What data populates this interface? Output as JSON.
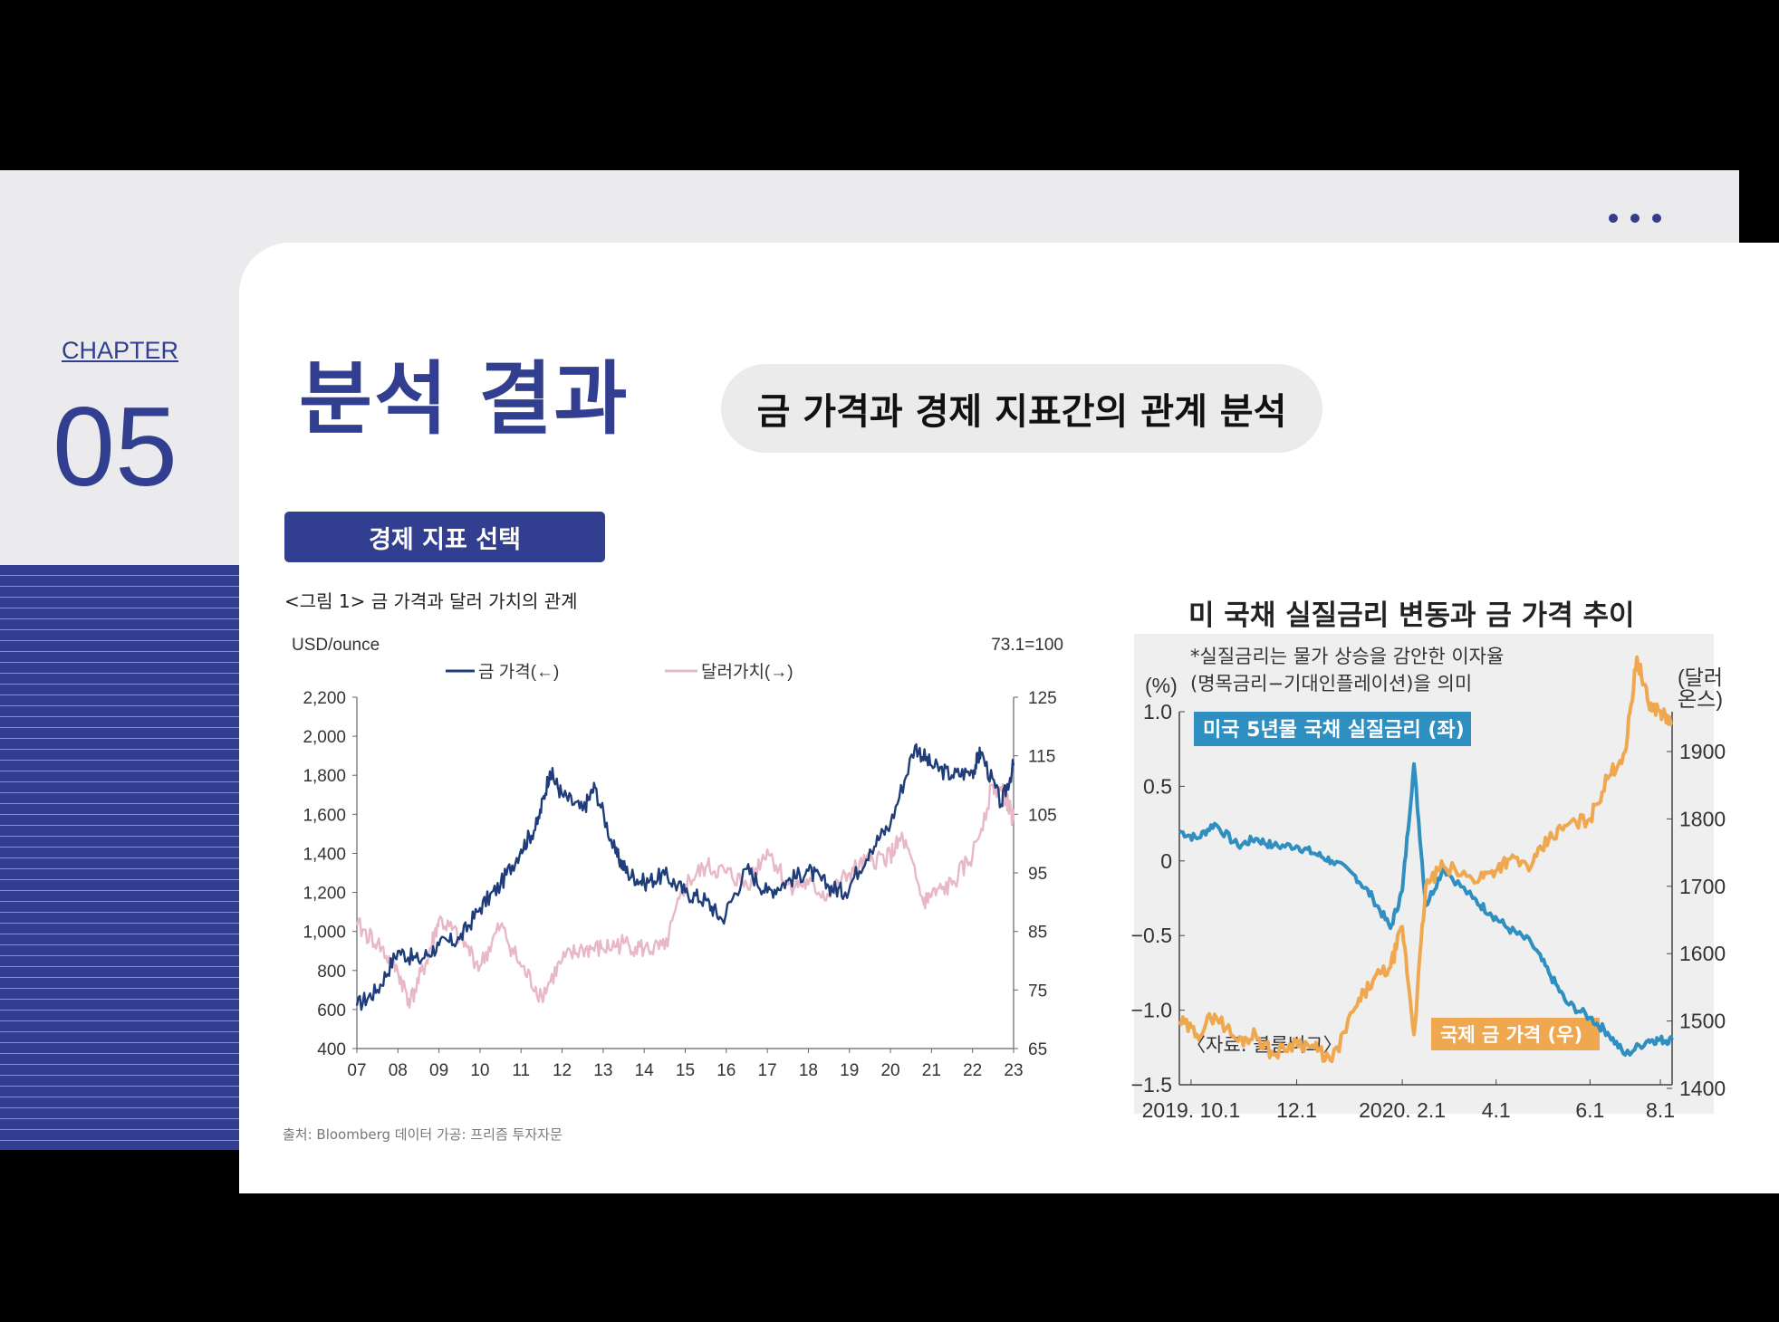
{
  "slide": {
    "chapter_label": "CHAPTER",
    "chapter_number": "05",
    "title": "분석 결과",
    "subtitle": "금 가격과 경제 지표간의 관계 분석",
    "select_button": "경제 지표 선택",
    "accent_color": "#323e8f"
  },
  "figure1": {
    "caption": "<그림 1> 금 가격과 달러 가치의 관계",
    "source": "출처: Bloomberg 데이터 가공: 프리즘 투자자문",
    "chart_data": {
      "type": "line",
      "left_unit": "USD/ounce",
      "right_unit": "73.1=100",
      "x_ticks": [
        "07",
        "08",
        "09",
        "10",
        "11",
        "12",
        "13",
        "14",
        "15",
        "16",
        "17",
        "18",
        "19",
        "20",
        "21",
        "22",
        "23"
      ],
      "y_left_ticks": [
        "2,200",
        "2,000",
        "1,800",
        "1,600",
        "1,400",
        "1,200",
        "1,000",
        "800",
        "600",
        "400"
      ],
      "y_right_ticks": [
        "125",
        "115",
        "105",
        "95",
        "85",
        "75",
        "65"
      ],
      "ylim_left": [
        400,
        2200
      ],
      "ylim_right": [
        65,
        125
      ],
      "series": [
        {
          "name": "금 가격(←)",
          "axis": "left",
          "color": "#1f3d7a",
          "x": [
            2007.0,
            2007.5,
            2008.0,
            2008.5,
            2009.0,
            2009.5,
            2010.0,
            2010.5,
            2011.0,
            2011.4,
            2011.7,
            2012.0,
            2012.5,
            2012.8,
            2013.3,
            2013.6,
            2014.0,
            2014.5,
            2015.0,
            2015.5,
            2015.9,
            2016.5,
            2017.0,
            2017.5,
            2018.0,
            2018.5,
            2018.9,
            2019.5,
            2020.0,
            2020.6,
            2021.0,
            2021.5,
            2022.0,
            2022.2,
            2022.7,
            2023.0
          ],
          "y": [
            620,
            700,
            900,
            850,
            930,
            960,
            1120,
            1240,
            1420,
            1550,
            1820,
            1700,
            1620,
            1740,
            1400,
            1300,
            1250,
            1290,
            1200,
            1160,
            1060,
            1320,
            1200,
            1260,
            1310,
            1230,
            1200,
            1420,
            1550,
            1950,
            1850,
            1800,
            1820,
            1920,
            1650,
            1850
          ]
        },
        {
          "name": "달러가치(→)",
          "axis": "right",
          "color": "#e8b8c8",
          "x": [
            2007.0,
            2007.5,
            2008.0,
            2008.3,
            2008.7,
            2009.0,
            2009.5,
            2010.0,
            2010.5,
            2011.0,
            2011.5,
            2012.0,
            2012.5,
            2013.0,
            2013.5,
            2014.0,
            2014.5,
            2015.0,
            2015.5,
            2016.0,
            2016.5,
            2017.0,
            2017.5,
            2018.0,
            2018.5,
            2019.0,
            2019.5,
            2020.0,
            2020.3,
            2020.8,
            2021.0,
            2021.5,
            2022.0,
            2022.5,
            2022.8,
            2023.0
          ],
          "y": [
            86,
            83,
            78,
            73,
            80,
            87,
            84,
            79,
            86,
            79,
            74,
            80,
            82,
            82,
            83,
            82,
            82,
            93,
            96,
            95,
            93,
            99,
            93,
            93,
            91,
            95,
            97,
            98,
            101,
            90,
            91,
            93,
            98,
            110,
            108,
            104
          ]
        }
      ]
    }
  },
  "figure2": {
    "title": "미 국채 실질금리 변동과 금 가격 추이",
    "note_line1": "*실질금리는 물가 상승을 감안한 이자율",
    "note_line2": "(명목금리−기대인플레이션)을 의미",
    "left_unit": "(%)",
    "right_unit_line1": "(달러",
    "right_unit_line2": "온스)",
    "legend_rate": "미국 5년물 국채 실질금리 (좌)",
    "legend_gold": "국제 금 가격 (우)",
    "source": "〈자료: 블룸버그〉",
    "chart_data": {
      "type": "line",
      "x_ticks": [
        "2019. 10.1",
        "12.1",
        "2020. 2.1",
        "4.1",
        "6.1",
        "8.1"
      ],
      "y_left_ticks": [
        "1.0",
        "0.5",
        "0",
        "−0.5",
        "−1.0",
        "−1.5"
      ],
      "y_right_ticks": [
        "1900",
        "1800",
        "1700",
        "1600",
        "1500",
        "1400"
      ],
      "ylim_left": [
        -1.5,
        1.0
      ],
      "series": [
        {
          "name": "미국 5년물 국채 실질금리 (좌)",
          "axis": "left",
          "color": "#2f8fc0",
          "x": [
            0,
            0.3,
            0.6,
            1,
            1.3,
            1.6,
            2,
            2.3,
            2.6,
            3,
            3.3,
            3.6,
            3.8,
            4,
            4.2,
            4.5,
            5,
            5.3,
            5.6,
            6,
            6.3,
            6.6,
            7,
            7.3,
            7.6,
            8,
            8.2,
            8.4
          ],
          "y": [
            0.2,
            0.15,
            0.25,
            0.1,
            0.15,
            0.1,
            0.1,
            0.05,
            0.0,
            -0.1,
            -0.25,
            -0.45,
            -0.2,
            0.65,
            -0.3,
            -0.05,
            -0.25,
            -0.35,
            -0.45,
            -0.55,
            -0.75,
            -0.95,
            -1.05,
            -1.15,
            -1.3,
            -1.2,
            -1.2,
            -1.2
          ]
        },
        {
          "name": "국제 금 가격 (우)",
          "axis": "right",
          "color": "#f0a850",
          "x": [
            0,
            0.3,
            0.6,
            1,
            1.3,
            1.6,
            2,
            2.3,
            2.6,
            3,
            3.3,
            3.6,
            3.8,
            4,
            4.2,
            4.5,
            5,
            5.3,
            5.6,
            6,
            6.3,
            6.6,
            7,
            7.3,
            7.6,
            7.8,
            8,
            8.2,
            8.4
          ],
          "y": [
            1500,
            1480,
            1510,
            1470,
            1480,
            1450,
            1470,
            1460,
            1440,
            1520,
            1560,
            1580,
            1640,
            1480,
            1700,
            1730,
            1710,
            1720,
            1740,
            1730,
            1770,
            1790,
            1800,
            1860,
            1900,
            2040,
            1970,
            1960,
            1940
          ]
        }
      ]
    }
  }
}
